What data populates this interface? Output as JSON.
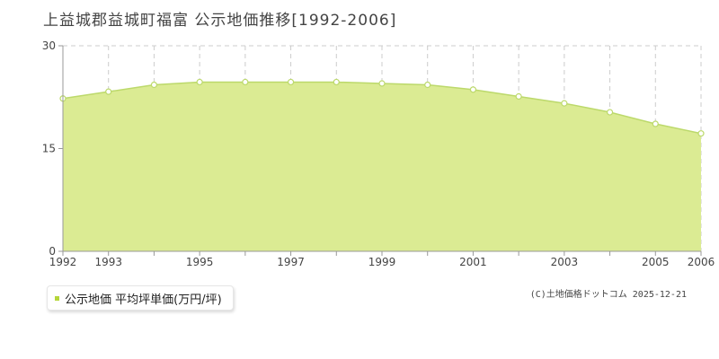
{
  "page": {
    "title": "上益城郡益城町福富 公示地価推移[1992-2006]",
    "credit": "(C)土地価格ドットコム 2025-12-21"
  },
  "colors": {
    "fill": "#dbeb93",
    "line": "#bcd96b",
    "point_fill": "#ffffff",
    "grid": "#cccccc",
    "axis": "#999999",
    "legend_swatch": "#b5d63a"
  },
  "chart_data": {
    "type": "area",
    "title": "上益城郡益城町福富 公示地価推移[1992-2006]",
    "x": [
      1992,
      1993,
      1994,
      1995,
      1996,
      1997,
      1998,
      1999,
      2000,
      2001,
      2002,
      2003,
      2004,
      2005,
      2006
    ],
    "series": [
      {
        "name": "公示地価 平均坪単価(万円/坪)",
        "values": [
          22.3,
          23.3,
          24.3,
          24.7,
          24.7,
          24.7,
          24.7,
          24.5,
          24.3,
          23.6,
          22.6,
          21.6,
          20.3,
          18.6,
          17.2
        ]
      }
    ],
    "xlim": [
      1992,
      2006
    ],
    "ylim": [
      0,
      30
    ],
    "yticks": [
      0,
      15,
      30
    ],
    "xtick_labels": [
      "1992",
      "1993",
      "1995",
      "1997",
      "1999",
      "2001",
      "2003",
      "2005",
      "2006"
    ],
    "grid": true,
    "legend_position": "bottom-left"
  }
}
